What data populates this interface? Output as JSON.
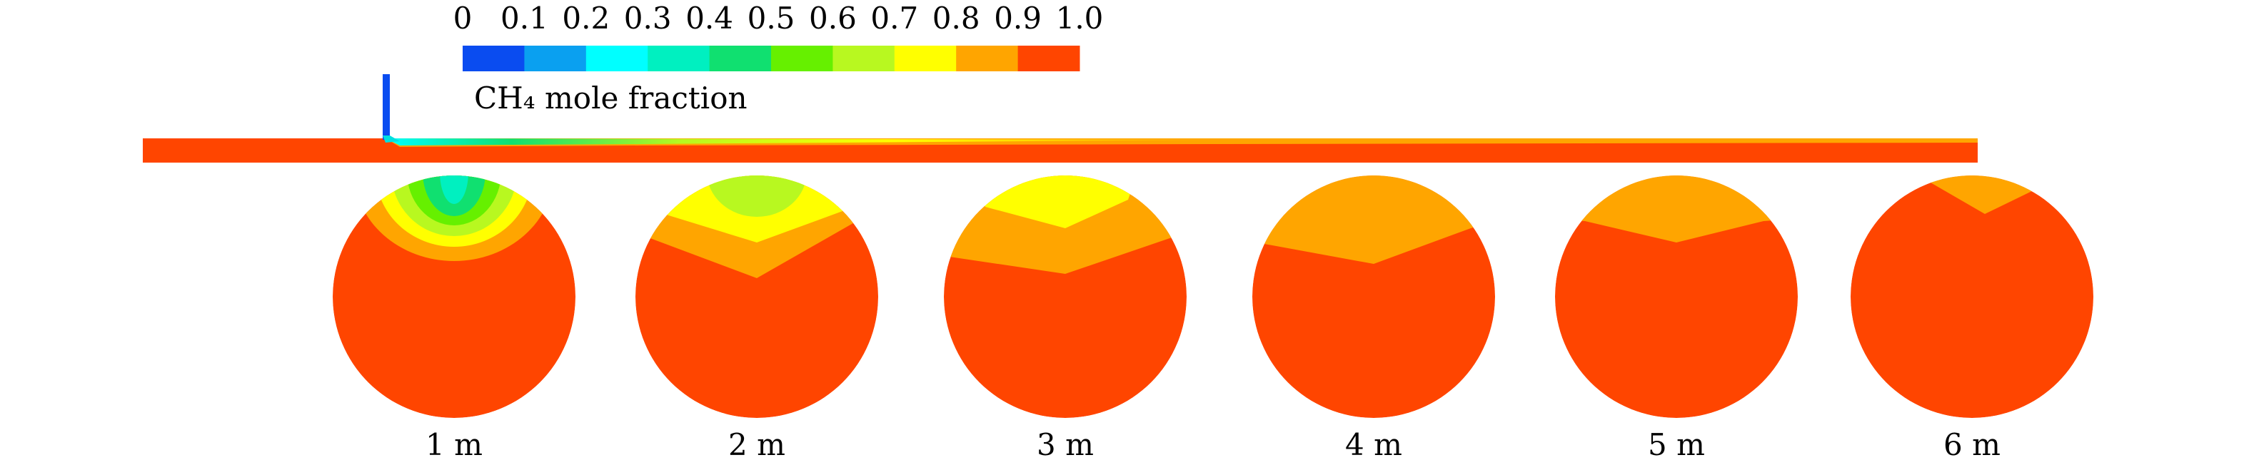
{
  "colorbar": {
    "ticks": [
      "0",
      "0.1",
      "0.2",
      "0.3",
      "0.4",
      "0.5",
      "0.6",
      "0.7",
      "0.8",
      "0.9",
      "1.0"
    ],
    "colors": [
      "#0a4cf0",
      "#0aa0f0",
      "#00ffff",
      "#00f0c0",
      "#10e070",
      "#66f000",
      "#b8f820",
      "#ffff00",
      "#ffa500",
      "#ff4500"
    ],
    "label": "CH₄ mole fraction"
  },
  "sections": [
    {
      "label": "1 m"
    },
    {
      "label": "2 m"
    },
    {
      "label": "3 m"
    },
    {
      "label": "4 m"
    },
    {
      "label": "5 m"
    },
    {
      "label": "6 m"
    }
  ]
}
